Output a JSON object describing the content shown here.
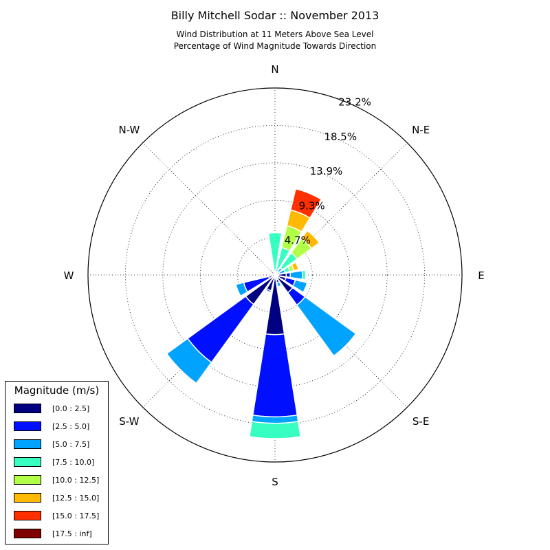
{
  "chart_data": {
    "type": "windrose",
    "title": "Billy Mitchell Sodar :: November 2013",
    "subtitle_lines": [
      "Wind Distribution at 11 Meters Above Sea Level",
      "Percentage of Wind Magnitude Towards Direction"
    ],
    "directions": [
      "N",
      "N-E",
      "E",
      "S-E",
      "S",
      "S-W",
      "W",
      "N-W"
    ],
    "radial_ticks": [
      "4.7%",
      "9.3%",
      "13.9%",
      "18.5%",
      "23.2%"
    ],
    "radial_tick_values": [
      4.64,
      9.28,
      13.92,
      18.56,
      23.2
    ],
    "r_max": 23.2,
    "bins": [
      {
        "label": "[0.0 : 2.5]",
        "color": "#000080"
      },
      {
        "label": "[2.5 : 5.0]",
        "color": "#0010ff"
      },
      {
        "label": "[5.0 : 7.5]",
        "color": "#00a4ff"
      },
      {
        "label": "[7.5 : 10.0]",
        "color": "#36ffc1"
      },
      {
        "label": "[10.0 : 12.5]",
        "color": "#b1ff46"
      },
      {
        "label": "[12.5 : 15.0]",
        "color": "#ffb900"
      },
      {
        "label": "[15.0 : 17.5]",
        "color": "#ff3000"
      },
      {
        "label": "[17.5 : inf]",
        "color": "#800000"
      }
    ],
    "sectors": [
      {
        "dir": 0,
        "stacks": [
          0.15,
          0.0,
          0.3,
          4.8,
          0.0,
          0.0,
          0.0,
          0.0
        ]
      },
      {
        "dir": 22.5,
        "stacks": [
          0.2,
          0.1,
          0.5,
          2.7,
          2.8,
          2.0,
          2.7,
          0.0
        ]
      },
      {
        "dir": 45,
        "stacks": [
          0.2,
          0.3,
          0.6,
          2.3,
          2.2,
          1.2,
          0.0,
          0.0
        ]
      },
      {
        "dir": 67.5,
        "stacks": [
          0.2,
          0.4,
          0.7,
          0.6,
          0.5,
          0.6,
          0.0,
          0.0
        ]
      },
      {
        "dir": 90,
        "stacks": [
          1.4,
          0.5,
          1.5,
          0.4,
          0.0,
          0.0,
          0.0,
          0.0
        ]
      },
      {
        "dir": 112.5,
        "stacks": [
          1.4,
          1.2,
          1.5,
          0.0,
          0.0,
          0.0,
          0.0,
          0.0
        ]
      },
      {
        "dir": 135,
        "stacks": [
          2.7,
          1.9,
          7.8,
          0.0,
          0.0,
          0.0,
          0.0,
          0.0
        ]
      },
      {
        "dir": 157.5,
        "stacks": [
          0.6,
          0.4,
          0.5,
          0.0,
          0.0,
          0.0,
          0.0,
          0.0
        ]
      },
      {
        "dir": 180,
        "stacks": [
          7.4,
          10.2,
          0.8,
          1.9,
          0.0,
          0.0,
          0.0,
          0.0
        ]
      },
      {
        "dir": 202.5,
        "stacks": [
          2.0,
          0.2,
          0.0,
          0.0,
          0.0,
          0.0,
          0.0,
          0.0
        ]
      },
      {
        "dir": 225,
        "stacks": [
          4.5,
          8.9,
          3.2,
          0.0,
          0.0,
          0.0,
          0.0,
          0.0
        ]
      },
      {
        "dir": 247.5,
        "stacks": [
          0.8,
          3.2,
          1.0,
          0.0,
          0.0,
          0.0,
          0.0,
          0.0
        ]
      },
      {
        "dir": 270,
        "stacks": [
          0.3,
          0.3,
          0.0,
          0.0,
          0.0,
          0.0,
          0.0,
          0.0
        ]
      },
      {
        "dir": 292.5,
        "stacks": [
          0.1,
          0.0,
          0.0,
          0.0,
          0.0,
          0.0,
          0.0,
          0.0
        ]
      },
      {
        "dir": 315,
        "stacks": [
          0.1,
          0.0,
          0.0,
          0.0,
          0.0,
          0.0,
          0.0,
          0.0
        ]
      },
      {
        "dir": 337.5,
        "stacks": [
          0.1,
          0.0,
          0.0,
          0.0,
          0.0,
          0.0,
          0.0,
          0.0
        ]
      }
    ],
    "grid": true,
    "legend_title": "Magnitude (m/s)",
    "legend_placement": "bottom-left"
  }
}
